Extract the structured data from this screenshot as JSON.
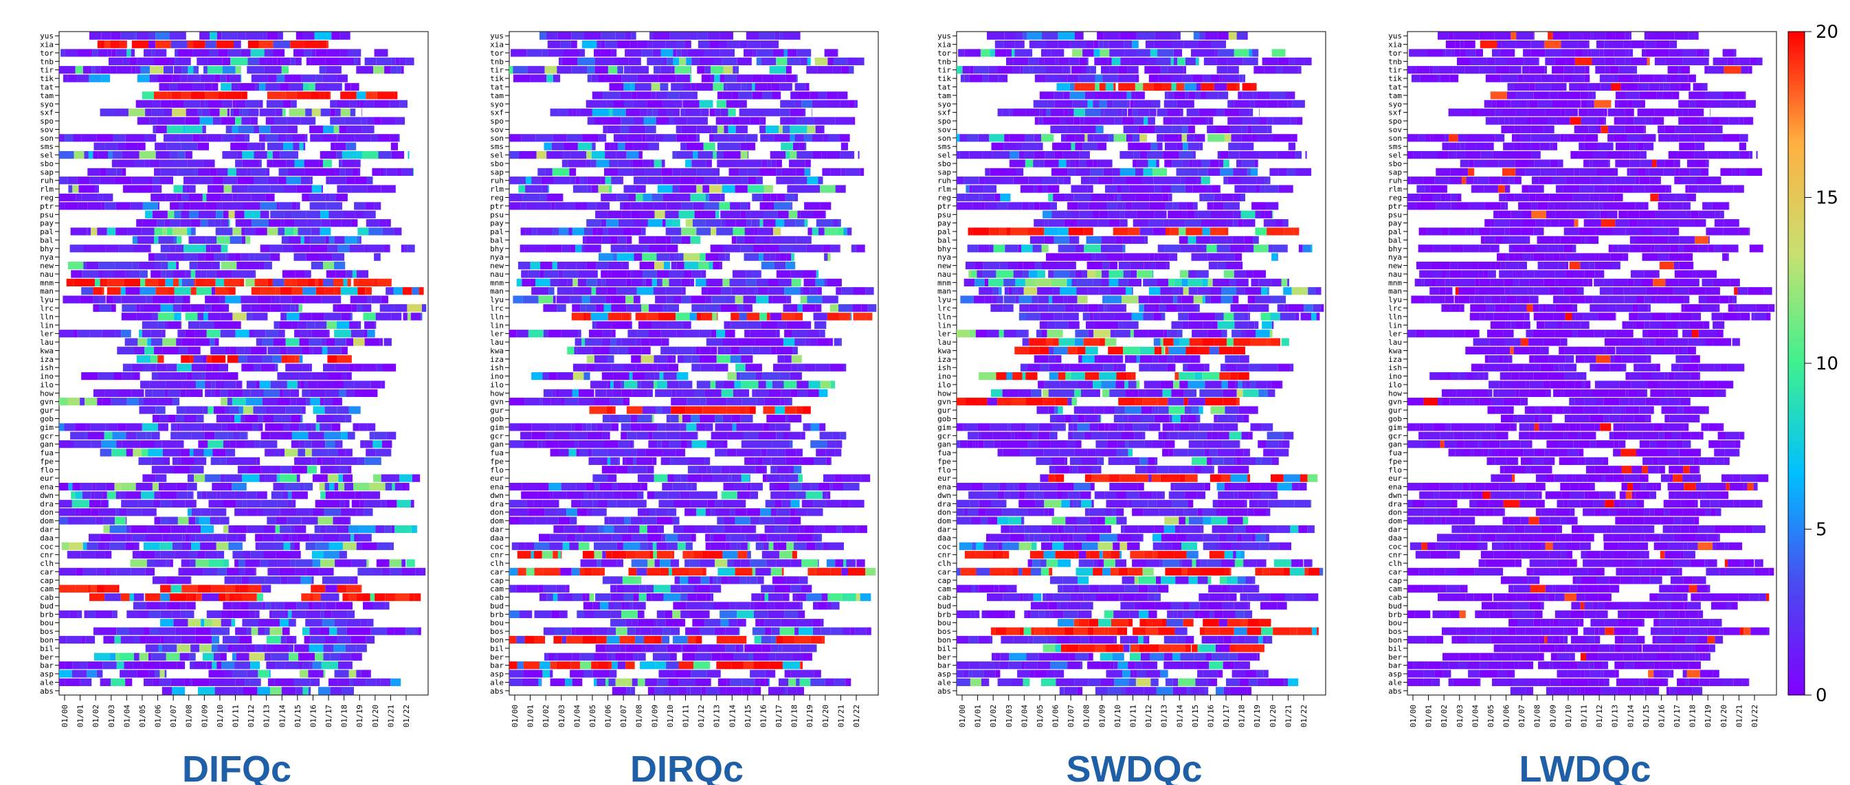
{
  "chart_data": {
    "type": "heatmap",
    "panels": [
      {
        "title": "DIFQc"
      },
      {
        "title": "DIRQc"
      },
      {
        "title": "SWDQc"
      },
      {
        "title": "LWDQc"
      }
    ],
    "stations": [
      "yus",
      "xia",
      "tor",
      "tnb",
      "tir",
      "tik",
      "tat",
      "tam",
      "syo",
      "sxf",
      "spo",
      "sov",
      "son",
      "sms",
      "sel",
      "sbo",
      "sap",
      "ruh",
      "rlm",
      "reg",
      "ptr",
      "psu",
      "pay",
      "pal",
      "bal",
      "bhy",
      "nya",
      "new",
      "nau",
      "mnm",
      "man",
      "lyu",
      "lrc",
      "lln",
      "lin",
      "ler",
      "lau",
      "kwa",
      "iza",
      "ish",
      "ino",
      "ilo",
      "how",
      "gvn",
      "gur",
      "gob",
      "gim",
      "gcr",
      "gan",
      "fua",
      "fpe",
      "flo",
      "eur",
      "ena",
      "dwn",
      "dra",
      "don",
      "dom",
      "dar",
      "daa",
      "coc",
      "cnr",
      "clh",
      "car",
      "cap",
      "cam",
      "cab",
      "bud",
      "brb",
      "bou",
      "bos",
      "bon",
      "bil",
      "ber",
      "bar",
      "asp",
      "ale",
      "abs"
    ],
    "x_ticks": [
      "01/00",
      "01/01",
      "01/02",
      "01/03",
      "01/04",
      "01/05",
      "01/06",
      "01/07",
      "01/08",
      "01/09",
      "01/10",
      "01/11",
      "01/12",
      "01/13",
      "01/14",
      "01/15",
      "01/16",
      "01/17",
      "01/18",
      "01/19",
      "01/20",
      "01/21",
      "01/22"
    ],
    "colorbar": {
      "min": 0,
      "max": 20,
      "ticks": [
        "0",
        "5",
        "10",
        "15",
        "20"
      ],
      "colors": [
        "#8000ff",
        "#4a4af0",
        "#00bfff",
        "#3ff08f",
        "#c8e070",
        "#ffb040",
        "#ff0000"
      ]
    },
    "no_data_color": "#ffffff"
  }
}
